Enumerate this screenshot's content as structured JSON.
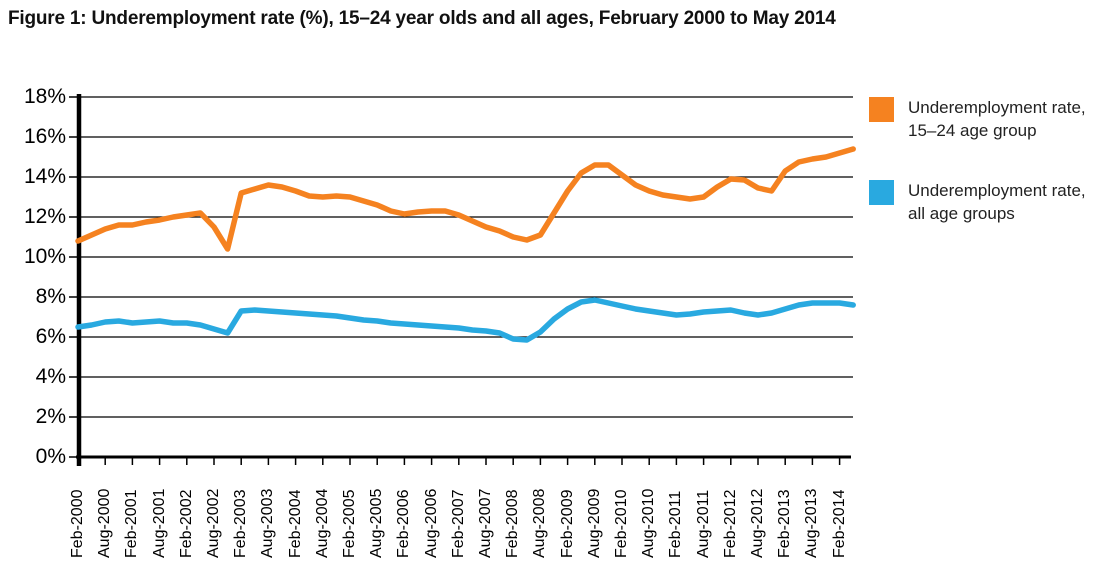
{
  "title": "Figure 1: Underemployment rate (%), 15–24 year olds and all ages, February 2000 to May 2014",
  "legend": {
    "position": "right",
    "items": [
      {
        "swatch_color": "#F58220",
        "line1": "Underemployment rate,",
        "line2": "15–24 age group"
      },
      {
        "swatch_color": "#29A9E0",
        "line1": "Underemployment rate,",
        "line2": "all age groups"
      }
    ]
  },
  "chart_data": {
    "type": "line",
    "title": "Figure 1: Underemployment rate (%), 15–24 year olds and all ages, February 2000 to May 2014",
    "x_frequency": "quarterly (Feb, May, Aug, Nov), Feb-2000 to May-2014",
    "x_tick_labels": [
      "Feb-2000",
      "Aug-2000",
      "Feb-2001",
      "Aug-2001",
      "Feb-2002",
      "Aug-2002",
      "Feb-2003",
      "Aug-2003",
      "Feb-2004",
      "Aug-2004",
      "Feb-2005",
      "Aug-2005",
      "Feb-2006",
      "Aug-2006",
      "Feb-2007",
      "Aug-2007",
      "Feb-2008",
      "Aug-2008",
      "Feb-2009",
      "Aug-2009",
      "Feb-2010",
      "Aug-2010",
      "Feb-2011",
      "Aug-2011",
      "Feb-2012",
      "Aug-2012",
      "Feb-2013",
      "Aug-2013",
      "Feb-2014"
    ],
    "points_per_x_tick": 2,
    "y_tick_labels": [
      "0%",
      "2%",
      "4%",
      "6%",
      "8%",
      "10%",
      "12%",
      "14%",
      "16%",
      "18%"
    ],
    "ylim": [
      0,
      18
    ],
    "grid": "horizontal",
    "legend_position": "right",
    "axis_color": "#000000",
    "series": [
      {
        "name": "Underemployment rate, 15–24 age group",
        "color": "#F58220",
        "values": [
          10.8,
          11.1,
          11.4,
          11.6,
          11.6,
          11.75,
          11.85,
          12.0,
          12.1,
          12.2,
          11.5,
          10.4,
          13.2,
          13.4,
          13.6,
          13.5,
          13.3,
          13.05,
          13.0,
          13.05,
          13.0,
          12.8,
          12.6,
          12.3,
          12.15,
          12.25,
          12.3,
          12.3,
          12.1,
          11.8,
          11.5,
          11.3,
          11.0,
          10.85,
          11.1,
          12.2,
          13.3,
          14.2,
          14.6,
          14.6,
          14.1,
          13.6,
          13.3,
          13.1,
          13.0,
          12.9,
          13.0,
          13.5,
          13.9,
          13.85,
          13.45,
          13.3,
          14.3,
          14.75,
          14.9,
          15.0,
          15.2,
          15.4
        ]
      },
      {
        "name": "Underemployment rate, all age groups",
        "color": "#29A9E0",
        "values": [
          6.5,
          6.6,
          6.75,
          6.8,
          6.7,
          6.75,
          6.8,
          6.7,
          6.7,
          6.6,
          6.4,
          6.2,
          7.3,
          7.35,
          7.3,
          7.25,
          7.2,
          7.15,
          7.1,
          7.05,
          6.95,
          6.85,
          6.8,
          6.7,
          6.65,
          6.6,
          6.55,
          6.5,
          6.45,
          6.35,
          6.3,
          6.2,
          5.9,
          5.85,
          6.25,
          6.9,
          7.4,
          7.75,
          7.85,
          7.7,
          7.55,
          7.4,
          7.3,
          7.2,
          7.1,
          7.15,
          7.25,
          7.3,
          7.35,
          7.2,
          7.1,
          7.2,
          7.4,
          7.6,
          7.7,
          7.7,
          7.7,
          7.6
        ]
      }
    ]
  }
}
